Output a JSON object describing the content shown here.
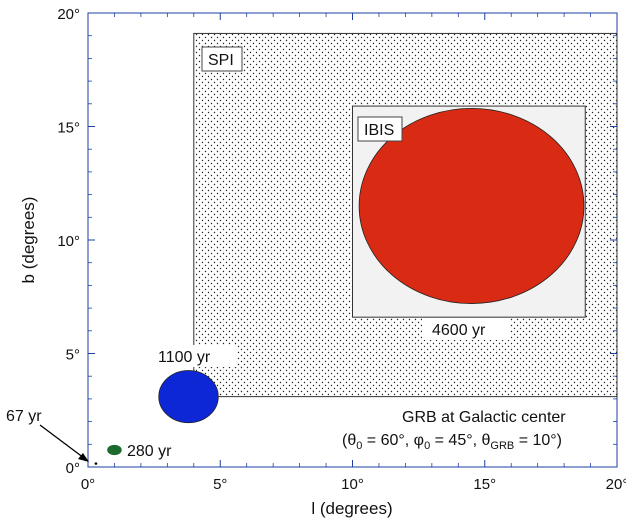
{
  "chart_data": {
    "type": "scatter",
    "xlabel": "l (degrees)",
    "ylabel": "b (degrees)",
    "xlim": [
      0,
      20
    ],
    "ylim": [
      0,
      20
    ],
    "x_ticks": [
      "0°",
      "5°",
      "10°",
      "15°",
      "20°"
    ],
    "y_ticks": [
      "0°",
      "5°",
      "10°",
      "15°",
      "20°"
    ],
    "regions": [
      {
        "name": "SPI",
        "x": [
          4.0,
          20.0
        ],
        "y": [
          3.1,
          19.1
        ],
        "fill": "stipple",
        "color": "#ffffff"
      },
      {
        "name": "IBIS",
        "x": [
          10.0,
          18.8
        ],
        "y": [
          6.6,
          15.9
        ],
        "fill": "solid",
        "color": "#f2f2f2"
      }
    ],
    "sources": [
      {
        "label": "67 yr",
        "center": [
          0.3,
          0.15
        ],
        "size": [
          0.1,
          0.1
        ],
        "color": "#000000"
      },
      {
        "label": "280 yr",
        "center": [
          1.0,
          0.75
        ],
        "size": [
          0.55,
          0.45
        ],
        "color": "#1d6a2e"
      },
      {
        "label": "1100 yr",
        "center": [
          3.8,
          3.1
        ],
        "size": [
          2.25,
          2.3
        ],
        "color": "#0d27d6"
      },
      {
        "label": "4600 yr",
        "center": [
          14.5,
          11.5
        ],
        "size": [
          8.5,
          8.6
        ],
        "color": "#d92a14"
      }
    ],
    "annotation": {
      "line1": "GRB at Galactic center",
      "line2_prefix": "(θ",
      "theta_sub": "0",
      "line2_mid1": " = 60°, φ",
      "phi_sub": "0",
      "line2_mid2": " = 45°, θ",
      "grb_sub": "GRB",
      "line2_suffix": " = 10°)"
    },
    "grid": false
  }
}
